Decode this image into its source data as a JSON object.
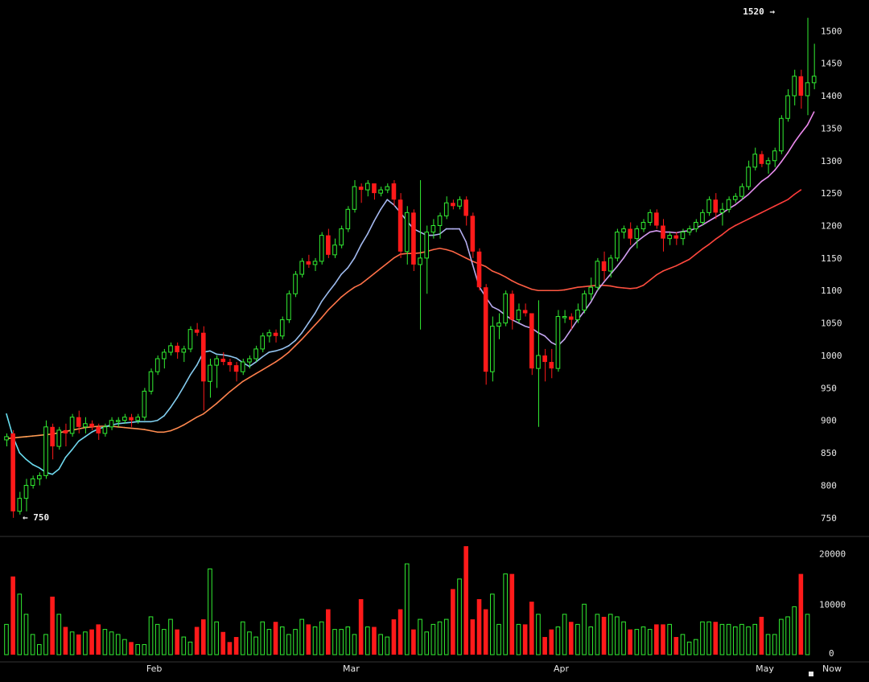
{
  "chart_data": {
    "type": "candlestick",
    "price_axis": {
      "ticks": [
        750,
        800,
        850,
        900,
        950,
        1000,
        1050,
        1100,
        1150,
        1200,
        1250,
        1300,
        1350,
        1400,
        1450,
        1500
      ],
      "range": [
        730,
        1535
      ]
    },
    "volume_axis": {
      "ticks": [
        0,
        10000,
        20000
      ],
      "range": [
        0,
        22000
      ]
    },
    "x_axis": {
      "labels": [
        {
          "text": "Feb",
          "index": 22.5
        },
        {
          "text": "Mar",
          "index": 52.5
        },
        {
          "text": "Apr",
          "index": 84.5
        },
        {
          "text": "May",
          "index": 115.5
        }
      ],
      "now_label": "Now"
    },
    "annotations": {
      "high": {
        "text": "1520 →",
        "value": 1520
      },
      "low": {
        "text": "← 750",
        "value": 750
      }
    },
    "colors": {
      "up": "#32ee32",
      "down": "#ff1a1a",
      "ma_short_early": "#66e0f0",
      "ma_short_late": "#ee88ee",
      "ma_long_early": "#ffa055",
      "ma_long_late": "#ff3a3a",
      "axis_text": "#e8e8e8",
      "separator": "#333333"
    },
    "candles": [
      [
        870,
        880,
        860,
        875
      ],
      [
        880,
        885,
        750,
        760
      ],
      [
        760,
        790,
        755,
        780
      ],
      [
        780,
        810,
        760,
        800
      ],
      [
        800,
        815,
        795,
        810
      ],
      [
        810,
        820,
        800,
        815
      ],
      [
        815,
        900,
        810,
        890
      ],
      [
        890,
        895,
        840,
        860
      ],
      [
        860,
        890,
        855,
        885
      ],
      [
        885,
        895,
        860,
        880
      ],
      [
        880,
        910,
        875,
        905
      ],
      [
        905,
        915,
        880,
        890
      ],
      [
        890,
        905,
        880,
        895
      ],
      [
        895,
        900,
        885,
        890
      ],
      [
        890,
        895,
        870,
        880
      ],
      [
        880,
        895,
        875,
        890
      ],
      [
        890,
        905,
        885,
        900
      ],
      [
        900,
        905,
        890,
        900
      ],
      [
        900,
        910,
        895,
        905
      ],
      [
        905,
        910,
        890,
        900
      ],
      [
        900,
        910,
        895,
        905
      ],
      [
        905,
        950,
        900,
        945
      ],
      [
        945,
        980,
        940,
        975
      ],
      [
        975,
        1000,
        970,
        995
      ],
      [
        995,
        1010,
        980,
        1005
      ],
      [
        1005,
        1020,
        1000,
        1015
      ],
      [
        1015,
        1020,
        995,
        1005
      ],
      [
        1005,
        1015,
        990,
        1010
      ],
      [
        1010,
        1045,
        1005,
        1040
      ],
      [
        1040,
        1050,
        1030,
        1035
      ],
      [
        1035,
        1045,
        915,
        960
      ],
      [
        960,
        995,
        935,
        985
      ],
      [
        985,
        1000,
        950,
        995
      ],
      [
        995,
        1005,
        985,
        990
      ],
      [
        990,
        995,
        975,
        985
      ],
      [
        985,
        990,
        960,
        975
      ],
      [
        975,
        995,
        970,
        990
      ],
      [
        990,
        1000,
        980,
        995
      ],
      [
        995,
        1015,
        990,
        1010
      ],
      [
        1010,
        1035,
        1005,
        1030
      ],
      [
        1030,
        1040,
        1020,
        1035
      ],
      [
        1035,
        1040,
        1020,
        1030
      ],
      [
        1030,
        1060,
        1025,
        1055
      ],
      [
        1055,
        1100,
        1050,
        1095
      ],
      [
        1095,
        1130,
        1090,
        1125
      ],
      [
        1125,
        1150,
        1120,
        1145
      ],
      [
        1145,
        1155,
        1135,
        1140
      ],
      [
        1140,
        1150,
        1130,
        1145
      ],
      [
        1145,
        1190,
        1140,
        1185
      ],
      [
        1185,
        1195,
        1150,
        1155
      ],
      [
        1155,
        1180,
        1150,
        1170
      ],
      [
        1170,
        1200,
        1165,
        1195
      ],
      [
        1195,
        1230,
        1190,
        1225
      ],
      [
        1225,
        1270,
        1220,
        1260
      ],
      [
        1260,
        1265,
        1235,
        1255
      ],
      [
        1255,
        1270,
        1245,
        1265
      ],
      [
        1265,
        1260,
        1240,
        1250
      ],
      [
        1250,
        1260,
        1245,
        1255
      ],
      [
        1255,
        1265,
        1250,
        1260
      ],
      [
        1265,
        1270,
        1230,
        1240
      ],
      [
        1240,
        1250,
        1150,
        1160
      ],
      [
        1160,
        1230,
        1140,
        1220
      ],
      [
        1220,
        1225,
        1130,
        1140
      ],
      [
        1140,
        1270,
        1040,
        1150
      ],
      [
        1150,
        1200,
        1095,
        1190
      ],
      [
        1190,
        1210,
        1180,
        1200
      ],
      [
        1200,
        1220,
        1180,
        1215
      ],
      [
        1215,
        1245,
        1210,
        1235
      ],
      [
        1235,
        1240,
        1225,
        1230
      ],
      [
        1230,
        1245,
        1225,
        1240
      ],
      [
        1240,
        1245,
        1200,
        1215
      ],
      [
        1215,
        1220,
        1150,
        1160
      ],
      [
        1160,
        1165,
        1100,
        1105
      ],
      [
        1105,
        1110,
        955,
        975
      ],
      [
        975,
        1060,
        960,
        1045
      ],
      [
        1045,
        1065,
        1025,
        1050
      ],
      [
        1050,
        1100,
        1045,
        1095
      ],
      [
        1095,
        1100,
        1040,
        1055
      ],
      [
        1055,
        1080,
        1050,
        1070
      ],
      [
        1070,
        1080,
        1060,
        1065
      ],
      [
        1065,
        1060,
        970,
        980
      ],
      [
        980,
        1085,
        890,
        1000
      ],
      [
        1000,
        1010,
        960,
        990
      ],
      [
        990,
        1010,
        965,
        980
      ],
      [
        980,
        1070,
        975,
        1060
      ],
      [
        1060,
        1070,
        1050,
        1060
      ],
      [
        1060,
        1065,
        1040,
        1055
      ],
      [
        1055,
        1080,
        1050,
        1070
      ],
      [
        1070,
        1100,
        1065,
        1095
      ],
      [
        1095,
        1120,
        1085,
        1105
      ],
      [
        1105,
        1150,
        1100,
        1145
      ],
      [
        1145,
        1160,
        1115,
        1130
      ],
      [
        1130,
        1155,
        1120,
        1150
      ],
      [
        1150,
        1195,
        1145,
        1190
      ],
      [
        1190,
        1200,
        1180,
        1195
      ],
      [
        1195,
        1205,
        1170,
        1180
      ],
      [
        1180,
        1200,
        1165,
        1195
      ],
      [
        1195,
        1210,
        1190,
        1205
      ],
      [
        1205,
        1225,
        1200,
        1220
      ],
      [
        1220,
        1225,
        1195,
        1200
      ],
      [
        1200,
        1210,
        1160,
        1180
      ],
      [
        1180,
        1190,
        1170,
        1185
      ],
      [
        1185,
        1190,
        1170,
        1180
      ],
      [
        1180,
        1195,
        1170,
        1190
      ],
      [
        1190,
        1200,
        1185,
        1195
      ],
      [
        1195,
        1210,
        1190,
        1205
      ],
      [
        1205,
        1225,
        1200,
        1220
      ],
      [
        1220,
        1245,
        1215,
        1240
      ],
      [
        1240,
        1250,
        1210,
        1220
      ],
      [
        1220,
        1235,
        1200,
        1225
      ],
      [
        1225,
        1245,
        1220,
        1240
      ],
      [
        1240,
        1250,
        1235,
        1245
      ],
      [
        1245,
        1265,
        1240,
        1260
      ],
      [
        1260,
        1300,
        1255,
        1290
      ],
      [
        1290,
        1320,
        1285,
        1310
      ],
      [
        1310,
        1315,
        1290,
        1295
      ],
      [
        1295,
        1305,
        1280,
        1300
      ],
      [
        1300,
        1320,
        1290,
        1315
      ],
      [
        1315,
        1370,
        1310,
        1365
      ],
      [
        1365,
        1410,
        1360,
        1400
      ],
      [
        1400,
        1440,
        1385,
        1430
      ],
      [
        1430,
        1440,
        1380,
        1400
      ],
      [
        1400,
        1520,
        1370,
        1420
      ],
      [
        1420,
        1480,
        1410,
        1430
      ]
    ],
    "volumes": [
      6000,
      15500,
      12000,
      8000,
      4000,
      2000,
      4000,
      11500,
      8000,
      5500,
      4500,
      4000,
      4500,
      5000,
      6000,
      5000,
      4500,
      4000,
      3000,
      2500,
      2000,
      2000,
      7500,
      6000,
      5000,
      7000,
      5000,
      3500,
      2500,
      5500,
      7000,
      17000,
      6500,
      4500,
      2500,
      3500,
      6500,
      4500,
      3500,
      6500,
      5000,
      6500,
      5500,
      4000,
      5000,
      7000,
      6000,
      5500,
      6500,
      9000,
      5000,
      5000,
      5500,
      4000,
      11000,
      5500,
      5500,
      4000,
      3500,
      7000,
      9000,
      18000,
      5000,
      7000,
      4500,
      6000,
      6500,
      7000,
      13000,
      15000,
      21500,
      7000,
      11000,
      9000,
      12000,
      6000,
      16000,
      16000,
      6000,
      6000,
      10500,
      8000,
      3500,
      5000,
      5500,
      8000,
      6500,
      6000,
      10000,
      5500,
      8000,
      7500,
      8000,
      7500,
      6500,
      5000,
      5000,
      5500,
      5000,
      6000,
      6000,
      6000,
      3500,
      4000,
      2500,
      3000,
      6500,
      6500,
      6500,
      6000,
      6000,
      5500,
      6000,
      5500,
      6000,
      7500,
      4000,
      4000,
      7000,
      7500,
      9500,
      16000,
      8000
    ],
    "ma_short": [
      910,
      875,
      850,
      840,
      832,
      827,
      820,
      817,
      825,
      843,
      855,
      868,
      875,
      882,
      887,
      890,
      893,
      895,
      896,
      897,
      898,
      898,
      898,
      900,
      907,
      920,
      935,
      952,
      970,
      985,
      1005,
      1007,
      1002,
      1001,
      999,
      996,
      989,
      983,
      990,
      998,
      1005,
      1007,
      1010,
      1015,
      1023,
      1035,
      1050,
      1065,
      1083,
      1097,
      1110,
      1125,
      1135,
      1150,
      1170,
      1187,
      1207,
      1225,
      1240,
      1232,
      1220,
      1207,
      1195,
      1190,
      1185,
      1185,
      1187,
      1195,
      1195,
      1195,
      1175,
      1140,
      1106,
      1090,
      1075,
      1070,
      1062,
      1055,
      1050,
      1045,
      1042,
      1035,
      1030,
      1020,
      1015,
      1025,
      1040,
      1055,
      1068,
      1082,
      1100,
      1113,
      1125,
      1137,
      1150,
      1165,
      1175,
      1183,
      1190,
      1192,
      1190,
      1190,
      1189,
      1191,
      1192,
      1196,
      1201,
      1207,
      1213,
      1219,
      1226,
      1232,
      1240,
      1248,
      1258,
      1268,
      1275,
      1285,
      1298,
      1312,
      1328,
      1342,
      1355,
      1375
    ],
    "ma_long": [
      872,
      873,
      874,
      875,
      876,
      877,
      878,
      879,
      881,
      883,
      885,
      887,
      889,
      890,
      891,
      891,
      891,
      890,
      889,
      888,
      887,
      886,
      884,
      882,
      882,
      884,
      888,
      893,
      899,
      905,
      910,
      918,
      926,
      935,
      944,
      952,
      960,
      966,
      972,
      978,
      984,
      990,
      997,
      1005,
      1015,
      1025,
      1036,
      1047,
      1058,
      1070,
      1080,
      1090,
      1098,
      1105,
      1110,
      1118,
      1126,
      1134,
      1142,
      1150,
      1156,
      1157,
      1157,
      1158,
      1160,
      1163,
      1165,
      1163,
      1160,
      1155,
      1150,
      1145,
      1141,
      1137,
      1130,
      1126,
      1121,
      1115,
      1110,
      1106,
      1102,
      1100,
      1100,
      1100,
      1100,
      1101,
      1103,
      1105,
      1106,
      1107,
      1108,
      1108,
      1107,
      1105,
      1104,
      1103,
      1104,
      1108,
      1116,
      1124,
      1130,
      1134,
      1138,
      1143,
      1148,
      1156,
      1164,
      1171,
      1179,
      1186,
      1194,
      1200,
      1205,
      1210,
      1215,
      1220,
      1225,
      1230,
      1235,
      1240,
      1248,
      1255
    ]
  }
}
